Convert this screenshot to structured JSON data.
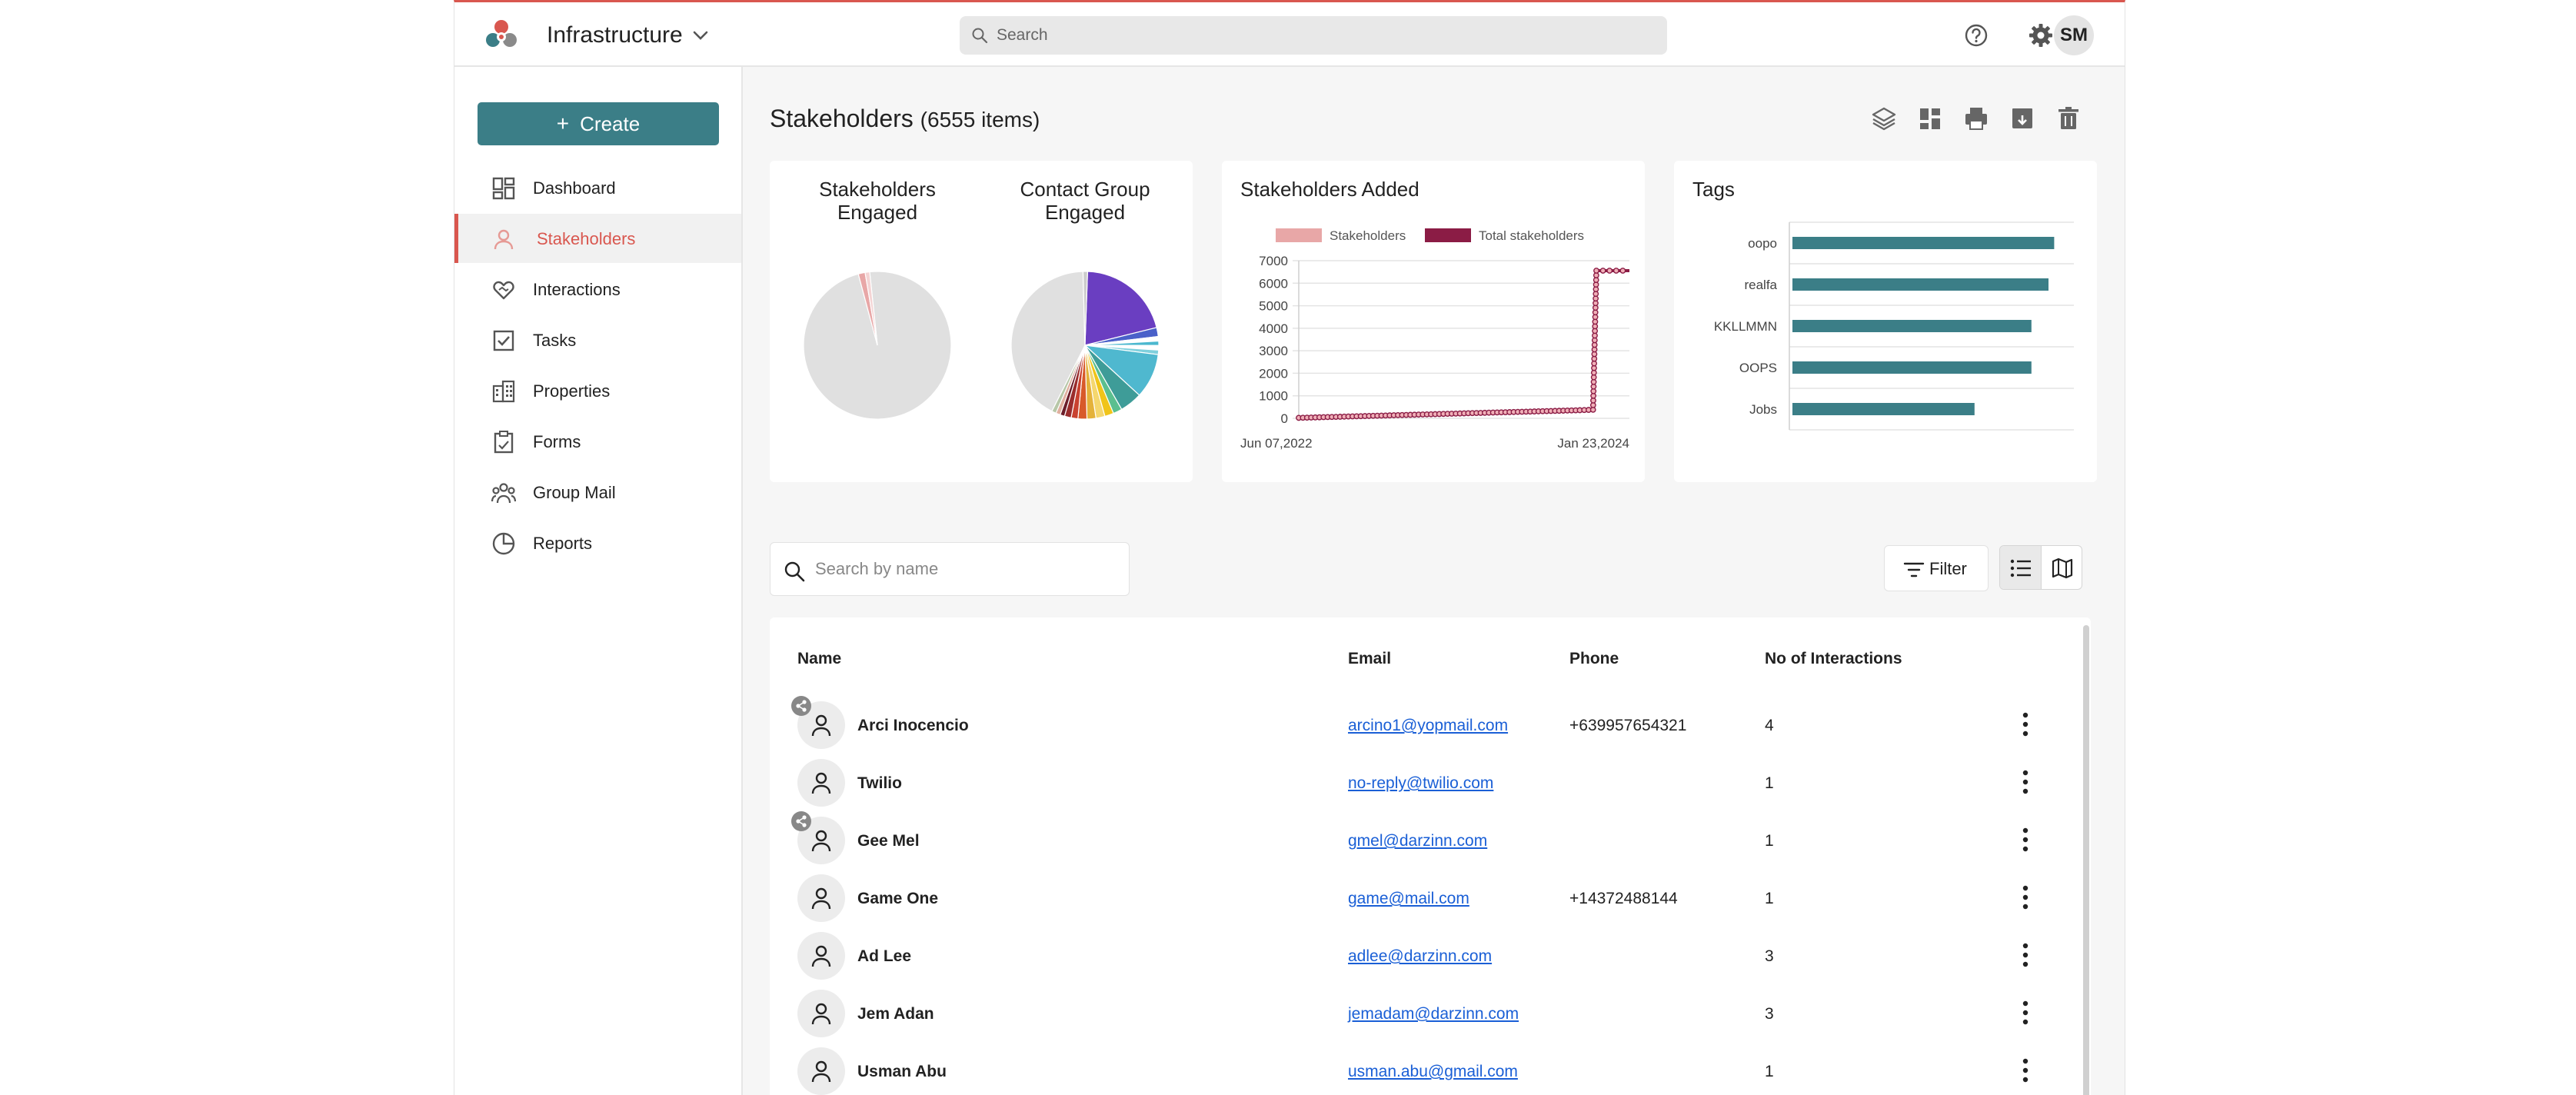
{
  "app": {
    "title": "Infrastructure",
    "search_placeholder": "Search",
    "user_initials": "SM",
    "accent_color": "#d9574f",
    "brand_color": "#3b7e87"
  },
  "sidebar": {
    "create_label": "Create",
    "items": [
      {
        "label": "Dashboard",
        "icon": "dashboard-icon",
        "active": false
      },
      {
        "label": "Stakeholders",
        "icon": "person-icon",
        "active": true
      },
      {
        "label": "Interactions",
        "icon": "handshake-heart-icon",
        "active": false
      },
      {
        "label": "Tasks",
        "icon": "checkbox-icon",
        "active": false
      },
      {
        "label": "Properties",
        "icon": "building-icon",
        "active": false
      },
      {
        "label": "Forms",
        "icon": "clipboard-icon",
        "active": false
      },
      {
        "label": "Group Mail",
        "icon": "group-icon",
        "active": false
      },
      {
        "label": "Reports",
        "icon": "pie-chart-icon",
        "active": false
      }
    ]
  },
  "main": {
    "title": "Stakeholders",
    "count_text": "(6555 items)",
    "header_icons": [
      "layers-icon",
      "grid-view-icon",
      "print-icon",
      "archive-download-icon",
      "trash-icon"
    ],
    "pie_cards": {
      "left_title": "Stakeholders Engaged",
      "right_title": "Contact Group Engaged"
    },
    "name_search_placeholder": "Search by name",
    "filter_label": "Filter",
    "table": {
      "headers": {
        "name": "Name",
        "email": "Email",
        "phone": "Phone",
        "interactions": "No of Interactions"
      },
      "rows": [
        {
          "name": "Arci Inocencio",
          "email": "arcino1@yopmail.com",
          "phone": "+639957654321",
          "interactions": "4",
          "shared": true
        },
        {
          "name": "Twilio",
          "email": "no-reply@twilio.com",
          "phone": "",
          "interactions": "1",
          "shared": false
        },
        {
          "name": "Gee Mel",
          "email": "gmel@darzinn.com",
          "phone": "",
          "interactions": "1",
          "shared": true
        },
        {
          "name": "Game One",
          "email": "game@mail.com",
          "phone": "+14372488144",
          "interactions": "1",
          "shared": false
        },
        {
          "name": "Ad Lee",
          "email": "adlee@darzinn.com",
          "phone": "",
          "interactions": "3",
          "shared": false
        },
        {
          "name": "Jem Adan",
          "email": "jemadam@darzinn.com",
          "phone": "",
          "interactions": "3",
          "shared": false
        },
        {
          "name": "Usman Abu",
          "email": "usman.abu@gmail.com",
          "phone": "",
          "interactions": "1",
          "shared": false
        }
      ]
    }
  },
  "chart_data": [
    {
      "type": "pie",
      "title": "Stakeholders Engaged",
      "values": [
        97.5,
        1.5,
        1.0
      ],
      "colors": [
        "#e0e0e0",
        "#e8a7a7",
        "#f4d4d4"
      ]
    },
    {
      "type": "pie",
      "title": "Contact Group Engaged",
      "values": [
        21,
        2,
        1,
        1,
        1,
        1,
        10,
        5,
        2,
        2,
        2,
        2,
        2,
        1.5,
        1.5,
        1,
        1,
        1,
        43,
        1
      ],
      "colors": [
        "#6a3ec1",
        "#4a61c9",
        "#ffffff",
        "#4bb8cf",
        "#ffffff",
        "#7fd0dd",
        "#4fb8cf",
        "#3e9c98",
        "#5bbf8f",
        "#f0c419",
        "#f5d76e",
        "#e4b23a",
        "#d85a2a",
        "#c9412f",
        "#9a2d2d",
        "#6c1e2a",
        "#e0b0a0",
        "#b7c7a8",
        "#e0e0e0",
        "#cccccc"
      ]
    },
    {
      "type": "line",
      "title": "Stakeholders Added",
      "legend": [
        "Stakeholders",
        "Total stakeholders"
      ],
      "legend_colors": [
        "#e8a7a7",
        "#8b1c45"
      ],
      "x_tick_labels": [
        "Jun 07,2022",
        "Jan 23,2024"
      ],
      "y_ticks": [
        0,
        1000,
        2000,
        3000,
        4000,
        5000,
        6000,
        7000
      ],
      "ylim": [
        0,
        7000
      ],
      "series": [
        {
          "name": "Total stakeholders",
          "x": [
            0,
            5,
            10,
            15,
            20,
            25,
            30,
            35,
            40,
            45,
            50,
            55,
            60,
            65,
            70,
            75,
            80,
            85,
            89,
            90,
            92,
            94,
            96,
            98,
            100
          ],
          "values": [
            20,
            40,
            60,
            80,
            100,
            120,
            140,
            160,
            180,
            200,
            220,
            240,
            260,
            280,
            300,
            320,
            340,
            360,
            380,
            6555,
            6555,
            6555,
            6555,
            6555,
            6555
          ]
        }
      ]
    },
    {
      "type": "bar",
      "orientation": "horizontal",
      "title": "Tags",
      "categories": [
        "oopo",
        "realfa",
        "KKLLMMN",
        "OOPS",
        "Jobs"
      ],
      "values": [
        92,
        90,
        84,
        84,
        64
      ],
      "xlim": [
        0,
        100
      ],
      "color": "#3b7e87"
    }
  ]
}
